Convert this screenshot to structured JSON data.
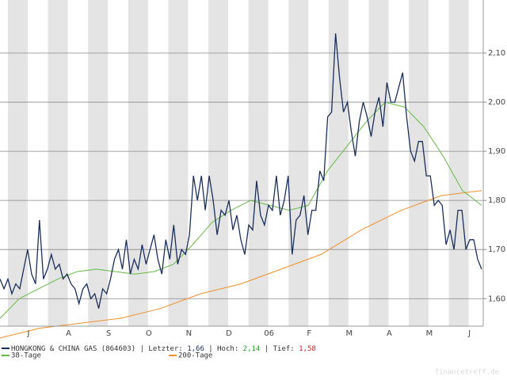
{
  "chart_data": {
    "type": "line",
    "x_labels": [
      "J",
      "A",
      "S",
      "O",
      "N",
      "D",
      "06",
      "F",
      "M",
      "A",
      "M",
      "J"
    ],
    "ylim": [
      1.544,
      2.208
    ],
    "yticks": [
      {
        "value": 1.6,
        "label": "1,60"
      },
      {
        "value": 1.7,
        "label": "1,70"
      },
      {
        "value": 1.8,
        "label": "1,80"
      },
      {
        "value": 1.9,
        "label": "1,90"
      },
      {
        "value": 2.0,
        "label": "2,00"
      },
      {
        "value": 2.1,
        "label": "2,10"
      }
    ],
    "grid": true,
    "series": [
      {
        "name": "HONGKONG & CHINA GAS (864603)",
        "color": "#1b2f5c",
        "values": [
          1.64,
          1.62,
          1.64,
          1.61,
          1.63,
          1.62,
          1.66,
          1.7,
          1.65,
          1.63,
          1.76,
          1.64,
          1.66,
          1.69,
          1.66,
          1.67,
          1.64,
          1.65,
          1.63,
          1.62,
          1.59,
          1.62,
          1.63,
          1.6,
          1.61,
          1.58,
          1.62,
          1.61,
          1.64,
          1.68,
          1.7,
          1.66,
          1.72,
          1.65,
          1.68,
          1.66,
          1.71,
          1.67,
          1.7,
          1.73,
          1.68,
          1.65,
          1.72,
          1.68,
          1.75,
          1.67,
          1.7,
          1.69,
          1.73,
          1.85,
          1.8,
          1.85,
          1.78,
          1.85,
          1.8,
          1.73,
          1.78,
          1.77,
          1.8,
          1.74,
          1.77,
          1.72,
          1.69,
          1.75,
          1.74,
          1.84,
          1.77,
          1.75,
          1.79,
          1.78,
          1.85,
          1.77,
          1.8,
          1.85,
          1.69,
          1.76,
          1.77,
          1.81,
          1.73,
          1.78,
          1.78,
          1.86,
          1.84,
          1.97,
          1.98,
          2.14,
          2.05,
          1.98,
          2.0,
          1.94,
          1.89,
          1.96,
          2.0,
          1.97,
          1.93,
          1.98,
          2.01,
          1.95,
          2.04,
          2.0,
          2.0,
          2.03,
          2.06,
          1.97,
          1.9,
          1.88,
          1.92,
          1.92,
          1.85,
          1.85,
          1.79,
          1.8,
          1.79,
          1.71,
          1.74,
          1.7,
          1.78,
          1.78,
          1.7,
          1.72,
          1.72,
          1.68,
          1.66
        ]
      },
      {
        "name": "38-Tage",
        "color": "#66bb44",
        "values": [
          1.56,
          1.6,
          1.62,
          1.64,
          1.655,
          1.66,
          1.655,
          1.65,
          1.655,
          1.67,
          1.71,
          1.755,
          1.78,
          1.8,
          1.79,
          1.78,
          1.79,
          1.86,
          1.91,
          1.96,
          2.0,
          1.99,
          1.95,
          1.89,
          1.82,
          1.79
        ]
      },
      {
        "name": "200-Tage",
        "color": "#f0902a",
        "values": [
          1.52,
          1.54,
          1.55,
          1.56,
          1.58,
          1.61,
          1.63,
          1.66,
          1.69,
          1.74,
          1.78,
          1.81,
          1.82
        ]
      }
    ],
    "stats": [
      {
        "label": "Letzter:",
        "value": "1,66",
        "color": "#1b2f5c"
      },
      {
        "label": "Hoch:",
        "value": "2,14",
        "color": "#2a9a2a"
      },
      {
        "label": "Tief:",
        "value": "1,58",
        "color": "#cc2222"
      }
    ],
    "separator": "|",
    "source": "financetreff.de"
  }
}
